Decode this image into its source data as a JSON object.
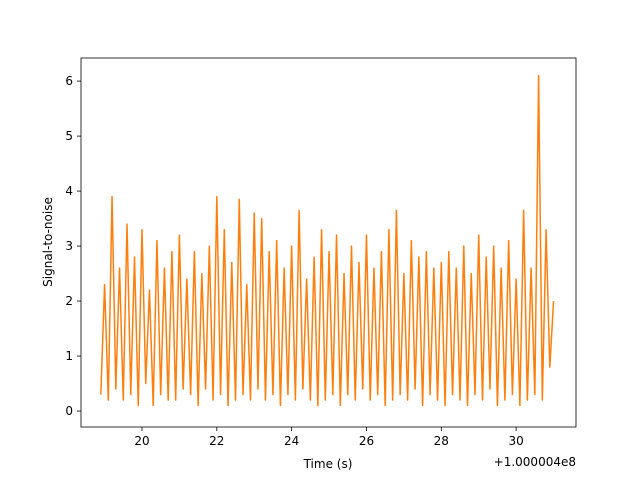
{
  "chart_data": {
    "type": "line",
    "xlabel": "Time (s)",
    "ylabel": "Signal-to-noise",
    "x_offset_label": "+1.000004e8",
    "x": [
      18.9,
      19.0,
      19.1,
      19.2,
      19.3,
      19.4,
      19.5,
      19.6,
      19.7,
      19.8,
      19.9,
      20.0,
      20.1,
      20.2,
      20.3,
      20.4,
      20.5,
      20.6,
      20.7,
      20.8,
      20.9,
      21.0,
      21.1,
      21.2,
      21.3,
      21.4,
      21.5,
      21.6,
      21.7,
      21.8,
      21.9,
      22.0,
      22.1,
      22.2,
      22.3,
      22.4,
      22.5,
      22.6,
      22.7,
      22.8,
      22.9,
      23.0,
      23.1,
      23.2,
      23.3,
      23.4,
      23.5,
      23.6,
      23.7,
      23.8,
      23.9,
      24.0,
      24.1,
      24.2,
      24.3,
      24.4,
      24.5,
      24.6,
      24.7,
      24.8,
      24.9,
      25.0,
      25.1,
      25.2,
      25.3,
      25.4,
      25.5,
      25.6,
      25.7,
      25.8,
      25.9,
      26.0,
      26.1,
      26.2,
      26.3,
      26.4,
      26.5,
      26.6,
      26.7,
      26.8,
      26.9,
      27.0,
      27.1,
      27.2,
      27.3,
      27.4,
      27.5,
      27.6,
      27.7,
      27.8,
      27.9,
      28.0,
      28.1,
      28.2,
      28.3,
      28.4,
      28.5,
      28.6,
      28.7,
      28.8,
      28.9,
      29.0,
      29.1,
      29.2,
      29.3,
      29.4,
      29.5,
      29.6,
      29.7,
      29.8,
      29.9,
      30.0,
      30.1,
      30.2,
      30.3,
      30.4,
      30.5,
      30.6,
      30.7,
      30.8,
      30.9,
      31.0
    ],
    "series": [
      {
        "color": "#ff7f0e",
        "values": [
          0.3,
          2.3,
          0.2,
          3.9,
          0.4,
          2.6,
          0.2,
          3.4,
          0.3,
          2.8,
          0.1,
          3.3,
          0.5,
          2.2,
          0.1,
          3.1,
          0.3,
          2.6,
          0.2,
          2.9,
          0.2,
          3.2,
          0.4,
          2.4,
          0.3,
          2.9,
          0.1,
          2.5,
          0.4,
          3.0,
          0.2,
          3.9,
          0.3,
          3.3,
          0.1,
          2.7,
          0.2,
          3.85,
          0.3,
          2.3,
          0.2,
          3.6,
          0.4,
          3.5,
          0.2,
          2.9,
          0.3,
          3.1,
          0.1,
          2.6,
          0.3,
          3.0,
          0.2,
          3.65,
          0.4,
          2.4,
          0.2,
          2.8,
          0.1,
          3.3,
          0.2,
          2.9,
          0.3,
          3.2,
          0.1,
          2.5,
          0.3,
          3.0,
          0.2,
          2.7,
          0.4,
          3.2,
          0.2,
          2.6,
          0.3,
          2.9,
          0.1,
          3.3,
          0.2,
          3.65,
          0.3,
          2.5,
          0.2,
          3.1,
          0.4,
          2.8,
          0.1,
          2.9,
          0.3,
          2.6,
          0.2,
          2.7,
          0.1,
          2.9,
          0.3,
          2.6,
          0.2,
          3.0,
          0.1,
          2.5,
          0.3,
          3.2,
          0.2,
          2.8,
          0.4,
          3.0,
          0.1,
          2.6,
          0.2,
          3.1,
          0.3,
          2.4,
          0.1,
          3.65,
          0.2,
          2.6,
          0.3,
          6.1,
          0.2,
          3.3,
          0.8,
          2.0
        ]
      }
    ],
    "xlim": [
      18.37,
      31.6
    ],
    "ylim": [
      -0.29,
      6.42
    ],
    "xticks": [
      20,
      22,
      24,
      26,
      28,
      30
    ],
    "yticks": [
      0,
      1,
      2,
      3,
      4,
      5,
      6
    ]
  }
}
